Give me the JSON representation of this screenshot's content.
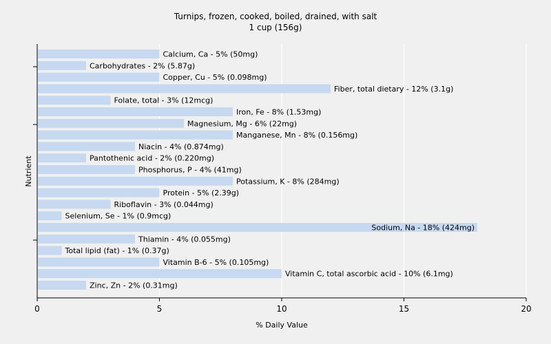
{
  "chart_data": {
    "type": "bar",
    "orientation": "horizontal",
    "title": "Turnips, frozen, cooked, boiled, drained, with salt",
    "subtitle": "1 cup (156g)",
    "xlabel": "% Daily Value",
    "ylabel": "Nutrient",
    "xlim": [
      0,
      20
    ],
    "xticks": [
      0,
      5,
      10,
      15,
      20
    ],
    "grid": "vertical",
    "bar_color": "#c6d9f1",
    "categories": [
      "Calcium, Ca",
      "Carbohydrates",
      "Copper, Cu",
      "Fiber, total dietary",
      "Folate, total",
      "Iron, Fe",
      "Magnesium, Mg",
      "Manganese, Mn",
      "Niacin",
      "Pantothenic acid",
      "Phosphorus, P",
      "Potassium, K",
      "Protein",
      "Riboflavin",
      "Selenium, Se",
      "Sodium, Na",
      "Thiamin",
      "Total lipid (fat)",
      "Vitamin B-6",
      "Vitamin C, total ascorbic acid",
      "Zinc, Zn"
    ],
    "values": [
      5,
      2,
      5,
      12,
      3,
      8,
      6,
      8,
      4,
      2,
      4,
      8,
      5,
      3,
      1,
      18,
      4,
      1,
      5,
      10,
      2
    ],
    "labels": [
      "Calcium, Ca - 5% (50mg)",
      "Carbohydrates - 2% (5.87g)",
      "Copper, Cu - 5% (0.098mg)",
      "Fiber, total dietary - 12% (3.1g)",
      "Folate, total - 3% (12mcg)",
      "Iron, Fe - 8% (1.53mg)",
      "Magnesium, Mg - 6% (22mg)",
      "Manganese, Mn - 8% (0.156mg)",
      "Niacin - 4% (0.874mg)",
      "Pantothenic acid - 2% (0.220mg)",
      "Phosphorus, P - 4% (41mg)",
      "Potassium, K - 8% (284mg)",
      "Protein - 5% (2.39g)",
      "Riboflavin - 3% (0.044mg)",
      "Selenium, Se - 1% (0.9mcg)",
      "Sodium, Na - 18% (424mg)",
      "Thiamin - 4% (0.055mg)",
      "Total lipid (fat) - 1% (0.37g)",
      "Vitamin B-6 - 5% (0.105mg)",
      "Vitamin C, total ascorbic acid - 10% (6.1mg)",
      "Zinc, Zn - 2% (0.31mg)"
    ]
  }
}
